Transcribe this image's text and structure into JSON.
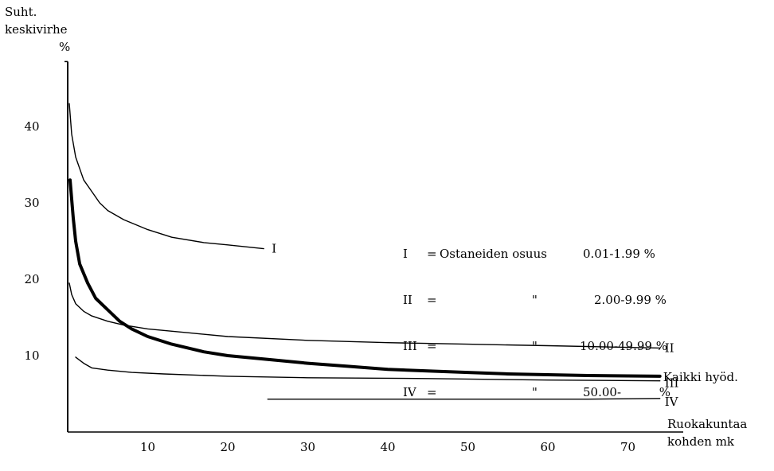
{
  "chart_data": {
    "type": "line",
    "title": "",
    "ylabel": [
      "Suht.",
      "keskivirhe",
      "%"
    ],
    "xlabel": [
      "Ruokakuntaa",
      "kohden mk"
    ],
    "xlim": [
      0,
      75
    ],
    "ylim": [
      0,
      50
    ],
    "x_ticks": [
      10,
      20,
      30,
      40,
      50,
      60,
      70
    ],
    "y_ticks": [
      10,
      20,
      30,
      40
    ],
    "grid": false,
    "series": [
      {
        "name": "I",
        "weight": "thin",
        "points": [
          [
            0.2,
            43
          ],
          [
            0.5,
            39
          ],
          [
            1,
            36
          ],
          [
            2,
            33
          ],
          [
            3,
            31.5
          ],
          [
            4,
            30
          ],
          [
            5,
            29
          ],
          [
            7,
            27.8
          ],
          [
            10,
            26.5
          ],
          [
            13,
            25.5
          ],
          [
            17,
            24.8
          ],
          [
            20,
            24.5
          ],
          [
            24.5,
            24
          ]
        ]
      },
      {
        "name": "II",
        "weight": "thin",
        "points": [
          [
            0.2,
            19.5
          ],
          [
            0.5,
            18
          ],
          [
            1,
            16.8
          ],
          [
            2,
            15.8
          ],
          [
            3,
            15.2
          ],
          [
            5,
            14.5
          ],
          [
            7,
            14
          ],
          [
            10,
            13.5
          ],
          [
            15,
            13
          ],
          [
            20,
            12.5
          ],
          [
            30,
            12
          ],
          [
            40,
            11.7
          ],
          [
            50,
            11.5
          ],
          [
            60,
            11.3
          ],
          [
            74,
            11
          ]
        ]
      },
      {
        "name": "Kaikki hyöd.",
        "weight": "bold",
        "points": [
          [
            0.3,
            33
          ],
          [
            0.7,
            28
          ],
          [
            1,
            25
          ],
          [
            1.5,
            22
          ],
          [
            2.5,
            19.5
          ],
          [
            3.5,
            17.5
          ],
          [
            5,
            16
          ],
          [
            6.5,
            14.5
          ],
          [
            8,
            13.5
          ],
          [
            10,
            12.5
          ],
          [
            13,
            11.5
          ],
          [
            17,
            10.5
          ],
          [
            20,
            10
          ],
          [
            25,
            9.5
          ],
          [
            30,
            9
          ],
          [
            35,
            8.6
          ],
          [
            40,
            8.2
          ],
          [
            45,
            8
          ],
          [
            50,
            7.8
          ],
          [
            55,
            7.6
          ],
          [
            60,
            7.5
          ],
          [
            65,
            7.4
          ],
          [
            74,
            7.3
          ]
        ]
      },
      {
        "name": "III",
        "weight": "thin",
        "points": [
          [
            1,
            9.8
          ],
          [
            2,
            9
          ],
          [
            3,
            8.4
          ],
          [
            5,
            8.1
          ],
          [
            8,
            7.8
          ],
          [
            12,
            7.6
          ],
          [
            20,
            7.3
          ],
          [
            30,
            7.1
          ],
          [
            45,
            7
          ],
          [
            60,
            6.8
          ],
          [
            74,
            6.7
          ]
        ]
      },
      {
        "name": "IV",
        "weight": "thin",
        "points": [
          [
            25,
            4.3
          ],
          [
            40,
            4.3
          ],
          [
            55,
            4.3
          ],
          [
            65,
            4.3
          ],
          [
            74,
            4.4
          ]
        ]
      }
    ],
    "legend": [
      {
        "key": "I",
        "eq": "=",
        "text": "Ostaneiden osuus",
        "range": "0.01-1.99 %"
      },
      {
        "key": "II",
        "eq": "=",
        "text": "\"",
        "range": "2.00-9.99 %"
      },
      {
        "key": "III",
        "eq": "=",
        "text": "\"",
        "range": "10.00-49.99 %"
      },
      {
        "key": "IV",
        "eq": "=",
        "text": "\"",
        "range": "50.00-          %"
      }
    ]
  }
}
